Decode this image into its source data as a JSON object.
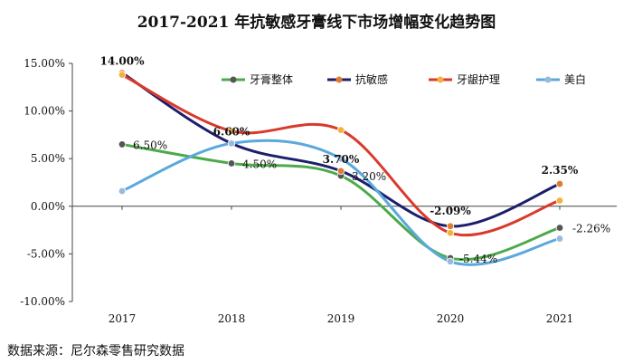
{
  "chart_data": {
    "type": "line",
    "title": "2017-2021 年抗敏感牙膏线下市场增幅变化趋势图",
    "source": "数据来源：尼尔森零售研究数据",
    "categories": [
      "2017",
      "2018",
      "2019",
      "2020",
      "2021"
    ],
    "ylim": [
      -10,
      15
    ],
    "yticks": [
      15,
      10,
      5,
      0,
      -5,
      -10
    ],
    "ytick_labels": [
      "15.00%",
      "10.00%",
      "5.00%",
      "0.00%",
      "-5.00%",
      "-10.00%"
    ],
    "legend_position": "top-right",
    "grid": false,
    "series": [
      {
        "name": "牙膏整体",
        "color": "#4caa4a",
        "marker": "#555555",
        "values": [
          6.5,
          4.5,
          3.2,
          -5.44,
          -2.26
        ]
      },
      {
        "name": "抗敏感",
        "color": "#1c1f6b",
        "marker": "#e07b30",
        "values": [
          14.0,
          6.6,
          3.7,
          -2.09,
          2.35
        ]
      },
      {
        "name": "牙龈护理",
        "color": "#d93a2b",
        "marker": "#f2b23d",
        "values": [
          13.8,
          7.9,
          8.0,
          -2.8,
          0.6
        ]
      },
      {
        "name": "美白",
        "color": "#5aa9dd",
        "marker": "#9ab9dd",
        "values": [
          1.6,
          6.6,
          5.0,
          -5.8,
          -3.4
        ]
      }
    ],
    "data_labels": [
      {
        "series": 0,
        "index": 0,
        "text": "6.50%",
        "bold": false
      },
      {
        "series": 0,
        "index": 1,
        "text": "4.50%",
        "bold": false
      },
      {
        "series": 0,
        "index": 2,
        "text": "3.20%",
        "bold": false
      },
      {
        "series": 0,
        "index": 3,
        "text": "-5.44%",
        "bold": false
      },
      {
        "series": 0,
        "index": 4,
        "text": "-2.26%",
        "bold": false
      },
      {
        "series": 1,
        "index": 0,
        "text": "14.00%",
        "bold": true
      },
      {
        "series": 1,
        "index": 1,
        "text": "6.60%",
        "bold": true
      },
      {
        "series": 1,
        "index": 2,
        "text": "3.70%",
        "bold": true
      },
      {
        "series": 1,
        "index": 3,
        "text": "-2.09%",
        "bold": true
      },
      {
        "series": 1,
        "index": 4,
        "text": "2.35%",
        "bold": true
      }
    ]
  }
}
